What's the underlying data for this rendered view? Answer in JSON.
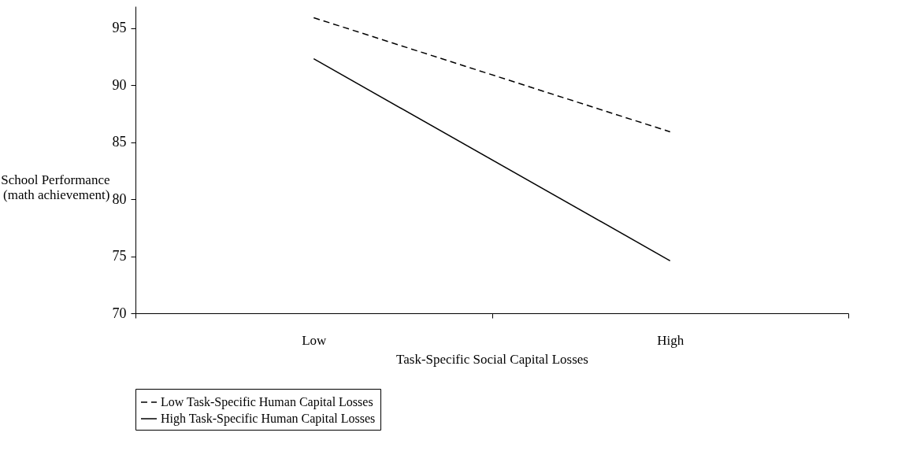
{
  "chart_data": {
    "type": "line",
    "xlabel": "Task-Specific Social Capital Losses",
    "ylabel": "School Performance\n(math achievement)",
    "categories": [
      "Low",
      "High"
    ],
    "series": [
      {
        "name": "Low Task-Specific Human Capital Losses",
        "color": "#000000",
        "line_style": "dashed",
        "values": [
          95.9,
          85.9
        ]
      },
      {
        "name": "High Task-Specific Human Capital Losses",
        "color": "#000000",
        "line_style": "solid",
        "values": [
          92.3,
          74.6
        ]
      }
    ],
    "ylim": [
      70,
      96.9
    ],
    "yticks": [
      70,
      75,
      80,
      85,
      90,
      95
    ],
    "grid": false,
    "legend": "bottom",
    "marker": "none"
  }
}
